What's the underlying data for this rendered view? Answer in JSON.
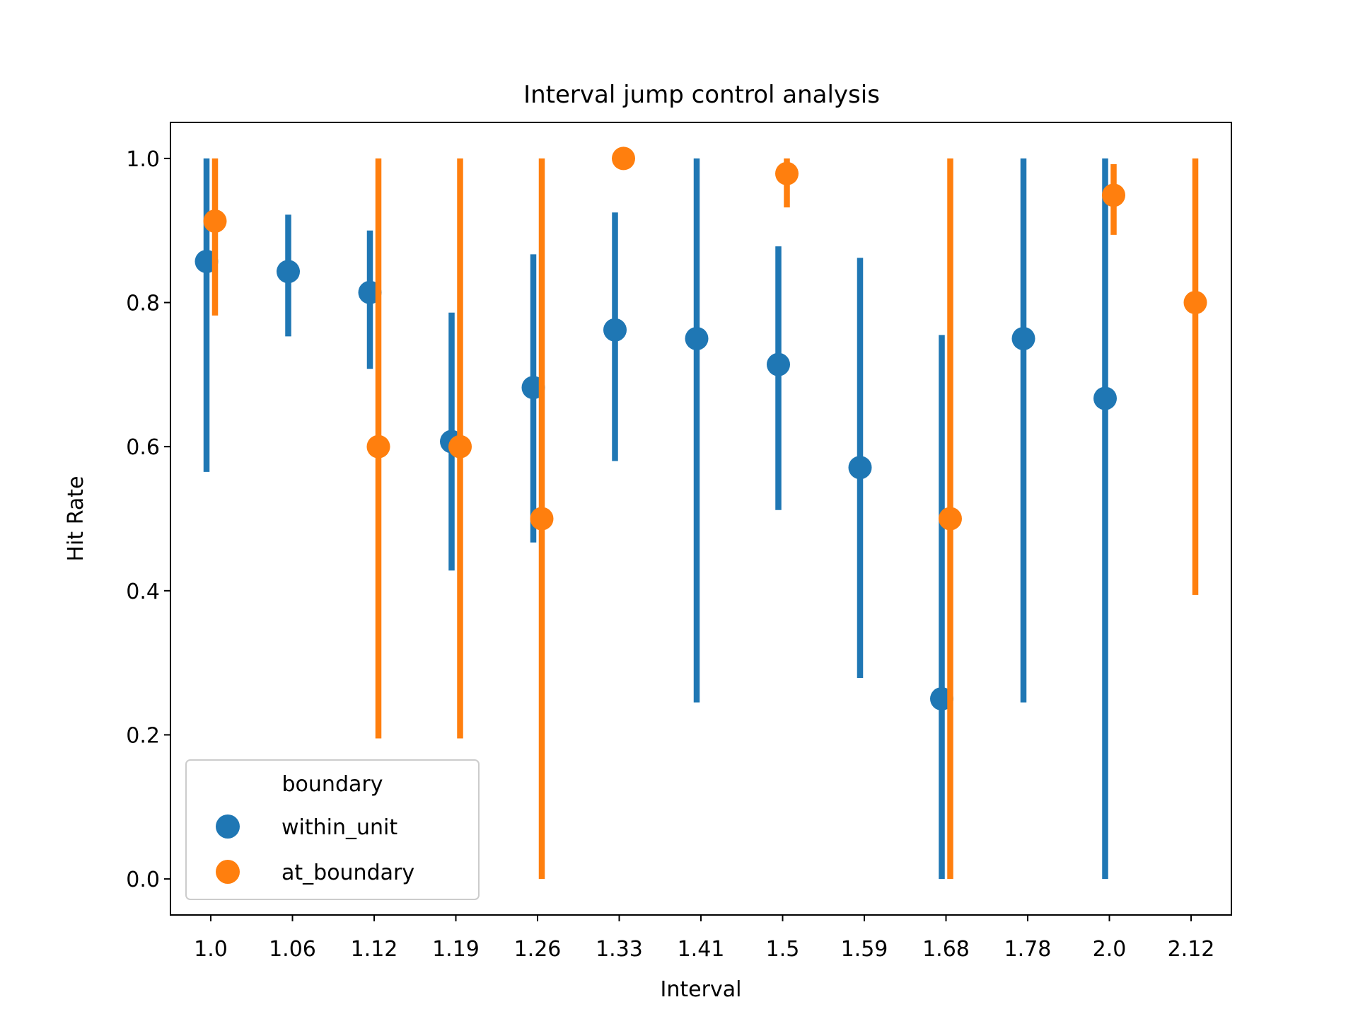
{
  "chart_data": {
    "type": "scatter",
    "title": "Interval jump control analysis",
    "xlabel": "Interval",
    "ylabel": "Hit Rate",
    "categories": [
      "1.0",
      "1.06",
      "1.12",
      "1.19",
      "1.26",
      "1.33",
      "1.41",
      "1.5",
      "1.59",
      "1.68",
      "1.78",
      "2.0",
      "2.12"
    ],
    "ylim": [
      -0.05,
      1.05
    ],
    "yticks": [
      "0.0",
      "0.2",
      "0.4",
      "0.6",
      "0.8",
      "1.0"
    ],
    "grid": false,
    "legend": {
      "title": "boundary",
      "placement": "lower-left"
    },
    "series": [
      {
        "name": "within_unit",
        "color": "#1f77b4",
        "values": [
          0.857,
          0.843,
          0.814,
          0.607,
          0.682,
          0.762,
          0.75,
          0.714,
          0.571,
          0.25,
          0.75,
          0.667,
          null
        ],
        "ci_low": [
          0.565,
          0.753,
          0.708,
          0.428,
          0.467,
          0.58,
          0.245,
          0.512,
          0.279,
          0.0,
          0.245,
          0.0,
          null
        ],
        "ci_high": [
          1.0,
          0.922,
          0.9,
          0.786,
          0.867,
          0.925,
          1.0,
          0.878,
          0.862,
          0.755,
          1.0,
          1.0,
          null
        ]
      },
      {
        "name": "at_boundary",
        "color": "#ff7f0e",
        "values": [
          0.913,
          null,
          0.6,
          0.6,
          0.5,
          1.0,
          null,
          0.979,
          null,
          0.5,
          null,
          0.949,
          0.8
        ],
        "ci_low": [
          0.782,
          null,
          0.195,
          0.195,
          0.0,
          1.0,
          null,
          0.932,
          null,
          0.0,
          null,
          0.894,
          0.394
        ],
        "ci_high": [
          1.0,
          null,
          1.0,
          1.0,
          1.0,
          1.0,
          null,
          1.0,
          null,
          1.0,
          null,
          0.992,
          1.0
        ]
      }
    ]
  }
}
